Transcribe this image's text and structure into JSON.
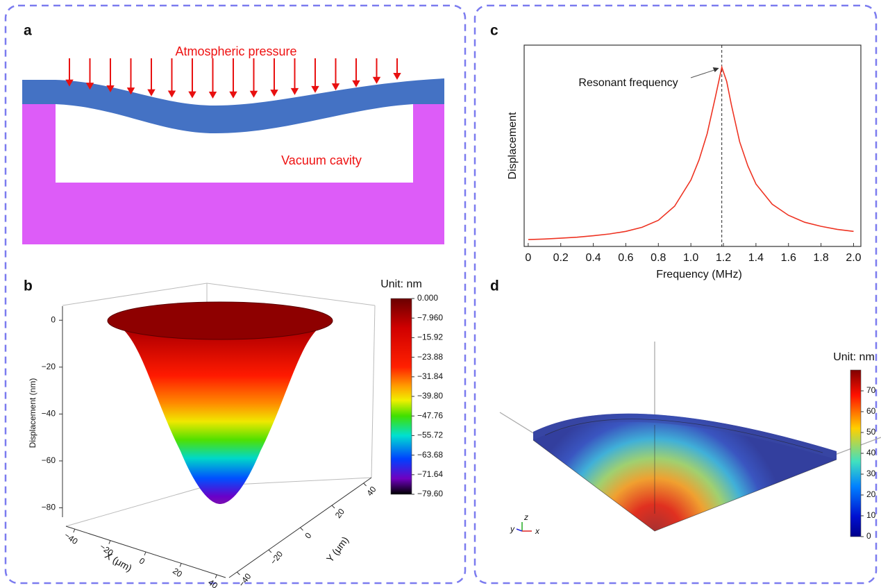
{
  "panel_labels": [
    "a",
    "b",
    "c",
    "d"
  ],
  "schematic": {
    "pressure_label": "Atmospheric pressure",
    "cavity_label": "Vacuum cavity"
  },
  "surface_plot": {
    "z_label": "Displacement (nm)",
    "x_label": "X (μm)",
    "y_label": "Y (μm)",
    "zlim": [
      -84,
      6
    ],
    "zticks": [
      0,
      {
        "value": -20,
        "label": "−20"
      },
      {
        "value": -40,
        "label": "−40"
      },
      {
        "value": -60,
        "label": "−60"
      },
      {
        "value": -80,
        "label": "−80"
      }
    ],
    "xlim": [
      -45,
      45
    ],
    "xticks": [
      {
        "value": -40,
        "label": "−40"
      },
      {
        "value": -20,
        "label": "−20"
      },
      0,
      20,
      40
    ],
    "ylim": [
      -45,
      45
    ],
    "yticks": [
      {
        "value": -40,
        "label": "−40"
      },
      {
        "value": -20,
        "label": "−20"
      },
      0,
      20,
      40
    ],
    "colorbar": {
      "title": "Unit: nm",
      "clim": [
        -79.6,
        0
      ],
      "ticks": [
        {
          "value": 0,
          "label": "0.000"
        },
        {
          "value": -7.96,
          "label": "−7.960"
        },
        {
          "value": -15.92,
          "label": "−15.92"
        },
        {
          "value": -23.88,
          "label": "−23.88"
        },
        {
          "value": -31.84,
          "label": "−31.84"
        },
        {
          "value": -39.8,
          "label": "−39.80"
        },
        {
          "value": -47.76,
          "label": "−47.76"
        },
        {
          "value": -55.72,
          "label": "−55.72"
        },
        {
          "value": -63.68,
          "label": "−63.68"
        },
        {
          "value": -71.64,
          "label": "−71.64"
        },
        {
          "value": -79.6,
          "label": "−79.60"
        }
      ]
    }
  },
  "chart_data": {
    "type": "line",
    "x_label": "Frequency (MHz)",
    "y_label": "Displacement",
    "annotation": "Resonant frequency",
    "x": [
      0,
      0.1,
      0.2,
      0.3,
      0.4,
      0.5,
      0.6,
      0.7,
      0.8,
      0.9,
      1.0,
      1.05,
      1.1,
      1.15,
      1.19,
      1.22,
      1.25,
      1.3,
      1.35,
      1.4,
      1.5,
      1.6,
      1.7,
      1.8,
      1.9,
      2.0
    ],
    "values": [
      0.034,
      0.037,
      0.041,
      0.046,
      0.053,
      0.062,
      0.075,
      0.095,
      0.13,
      0.2,
      0.33,
      0.43,
      0.56,
      0.74,
      0.89,
      0.82,
      0.7,
      0.52,
      0.4,
      0.31,
      0.21,
      0.155,
      0.12,
      0.1,
      0.085,
      0.075
    ],
    "color": "#ee3322",
    "resonance": 1.19,
    "xlim": [
      -0.025,
      2.045
    ],
    "ylim": [
      0,
      1
    ],
    "xticks": [
      0,
      0.2,
      0.4,
      0.6,
      0.8,
      {
        "value": 1,
        "label": "1.0"
      },
      1.2,
      1.4,
      1.6,
      1.8,
      {
        "value": 2,
        "label": "2.0"
      }
    ]
  },
  "sector_plot": {
    "axis_labels": [
      "z",
      "y",
      "x"
    ],
    "colorbar": {
      "title": "Unit: nm",
      "clim": [
        0,
        80
      ],
      "ticks": [
        0,
        10,
        20,
        30,
        40,
        50,
        60,
        70
      ]
    }
  }
}
